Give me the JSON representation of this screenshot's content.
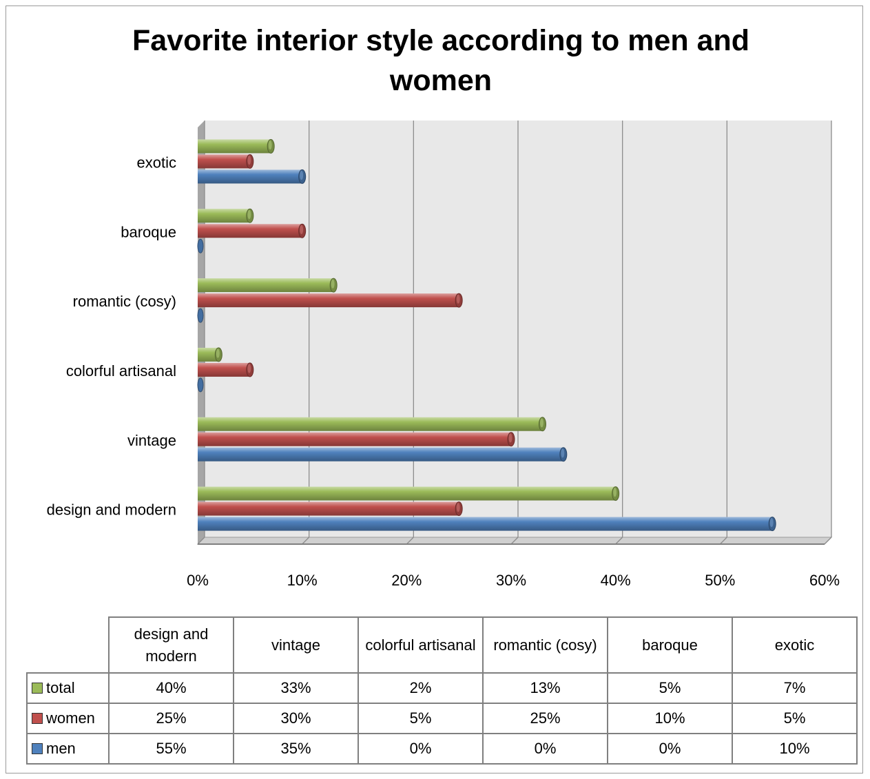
{
  "chart_data": {
    "type": "bar",
    "orientation": "horizontal",
    "title": "Favorite interior style according to men and women",
    "categories": [
      "design and modern",
      "vintage",
      "colorful artisanal",
      "romantic (cosy)",
      "baroque",
      "exotic"
    ],
    "series": [
      {
        "name": "total",
        "color": "#9bbb59",
        "values": [
          40,
          33,
          2,
          13,
          5,
          7
        ],
        "labels": [
          "40%",
          "33%",
          "2%",
          "13%",
          "5%",
          "7%"
        ]
      },
      {
        "name": "women",
        "color": "#c0504d",
        "values": [
          25,
          30,
          5,
          25,
          10,
          5
        ],
        "labels": [
          "25%",
          "30%",
          "5%",
          "25%",
          "10%",
          "5%"
        ]
      },
      {
        "name": "men",
        "color": "#4f81bd",
        "values": [
          55,
          35,
          0,
          0,
          0,
          10
        ],
        "labels": [
          "55%",
          "35%",
          "0%",
          "0%",
          "0%",
          "10%"
        ]
      }
    ],
    "xlim": [
      0,
      60
    ],
    "x_ticks": [
      "0%",
      "10%",
      "20%",
      "30%",
      "40%",
      "50%",
      "60%"
    ],
    "grid": true,
    "legend": "data table"
  }
}
